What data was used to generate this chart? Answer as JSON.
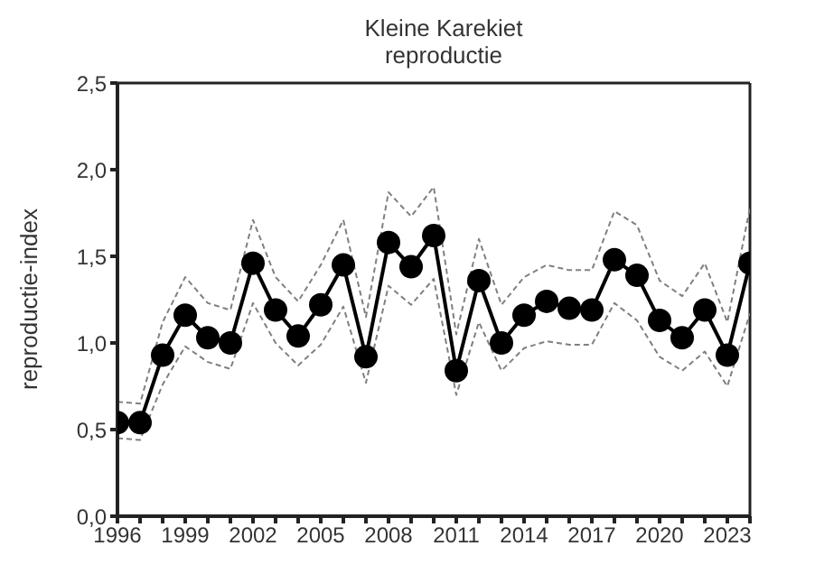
{
  "chart_data": {
    "type": "line",
    "title": "Kleine Karekiet",
    "subtitle": "reproductie",
    "ylabel": "reproductie-index",
    "x": [
      1996,
      1997,
      1998,
      1999,
      2000,
      2001,
      2002,
      2003,
      2004,
      2005,
      2006,
      2007,
      2008,
      2009,
      2010,
      2011,
      2012,
      2013,
      2014,
      2015,
      2016,
      2017,
      2018,
      2019,
      2020,
      2021,
      2022,
      2023,
      2024
    ],
    "series": [
      {
        "color": "#808080",
        "marker": "none",
        "line_style": "dashed",
        "values": [
          0.45,
          0.44,
          0.76,
          0.98,
          0.89,
          0.85,
          1.23,
          1.0,
          0.87,
          0.99,
          1.21,
          0.77,
          1.33,
          1.22,
          1.37,
          0.7,
          1.12,
          0.84,
          0.97,
          1.01,
          0.99,
          0.99,
          1.23,
          1.13,
          0.92,
          0.84,
          0.95,
          0.75,
          1.17
        ]
      },
      {
        "color": "#808080",
        "marker": "none",
        "line_style": "dashed",
        "values": [
          0.66,
          0.65,
          1.12,
          1.38,
          1.23,
          1.19,
          1.71,
          1.38,
          1.24,
          1.45,
          1.71,
          1.15,
          1.87,
          1.73,
          1.9,
          1.05,
          1.6,
          1.22,
          1.38,
          1.45,
          1.42,
          1.42,
          1.76,
          1.68,
          1.36,
          1.27,
          1.46,
          1.12,
          1.78
        ]
      },
      {
        "color": "#000000",
        "marker": "circle",
        "line_style": "solid",
        "values": [
          0.54,
          0.54,
          0.93,
          1.16,
          1.03,
          1.0,
          1.46,
          1.19,
          1.04,
          1.22,
          1.45,
          0.92,
          1.58,
          1.44,
          1.62,
          0.84,
          1.36,
          1.0,
          1.16,
          1.24,
          1.2,
          1.19,
          1.48,
          1.39,
          1.13,
          1.03,
          1.19,
          0.93,
          1.46
        ]
      }
    ],
    "xlim": [
      1996,
      2024
    ],
    "xticks": [
      1996,
      {
        "value": 1997,
        "label": null
      },
      {
        "value": 1998,
        "label": null
      },
      1999,
      {
        "value": 2000,
        "label": null
      },
      {
        "value": 2001,
        "label": null
      },
      2002,
      {
        "value": 2003,
        "label": null
      },
      {
        "value": 2004,
        "label": null
      },
      2005,
      {
        "value": 2006,
        "label": null
      },
      {
        "value": 2007,
        "label": null
      },
      2008,
      {
        "value": 2009,
        "label": null
      },
      {
        "value": 2010,
        "label": null
      },
      2011,
      {
        "value": 2012,
        "label": null
      },
      {
        "value": 2013,
        "label": null
      },
      2014,
      {
        "value": 2015,
        "label": null
      },
      {
        "value": 2016,
        "label": null
      },
      2017,
      {
        "value": 2018,
        "label": null
      },
      {
        "value": 2019,
        "label": null
      },
      2020,
      {
        "value": 2021,
        "label": null
      },
      {
        "value": 2022,
        "label": null
      },
      2023,
      {
        "value": 2024,
        "label": null
      }
    ],
    "ylim": [
      0,
      2.5
    ],
    "yticks": [
      {
        "value": 0,
        "label": "0,0"
      },
      {
        "value": 0.5,
        "label": "0,5"
      },
      {
        "value": 1,
        "label": "1,0"
      },
      {
        "value": 1.5,
        "label": "1,5"
      },
      {
        "value": 2,
        "label": "2,0"
      },
      {
        "value": 2.5,
        "label": "2,5"
      }
    ],
    "grid": false,
    "legend": false
  }
}
